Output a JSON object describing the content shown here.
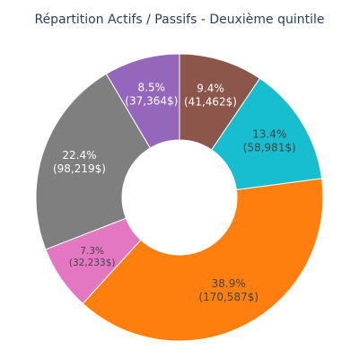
{
  "chart_data": {
    "type": "pie",
    "title": "Répartition Actifs / Passifs - Deuxième quintile",
    "hole": true,
    "slices": [
      {
        "percent_label": "9.4%",
        "value_label": "(41,462$)",
        "value": 41462,
        "color": "#8c564b",
        "text_color": "#ffffff"
      },
      {
        "percent_label": "13.4%",
        "value_label": "(58,981$)",
        "value": 58981,
        "color": "#17becf",
        "text_color": "#444444"
      },
      {
        "percent_label": "38.9%",
        "value_label": "(170,587$)",
        "value": 170587,
        "color": "#ff7f0e",
        "text_color": "#444444"
      },
      {
        "percent_label": "7.3%",
        "value_label": "(32,233$)",
        "value": 32233,
        "color": "#e377c2",
        "text_color": "#444444"
      },
      {
        "percent_label": "22.4%",
        "value_label": "(98,219$)",
        "value": 98219,
        "color": "#7f7f7f",
        "text_color": "#ffffff"
      },
      {
        "percent_label": "8.5%",
        "value_label": "(37,364$)",
        "value": 37364,
        "color": "#9467bd",
        "text_color": "#ffffff"
      }
    ]
  }
}
